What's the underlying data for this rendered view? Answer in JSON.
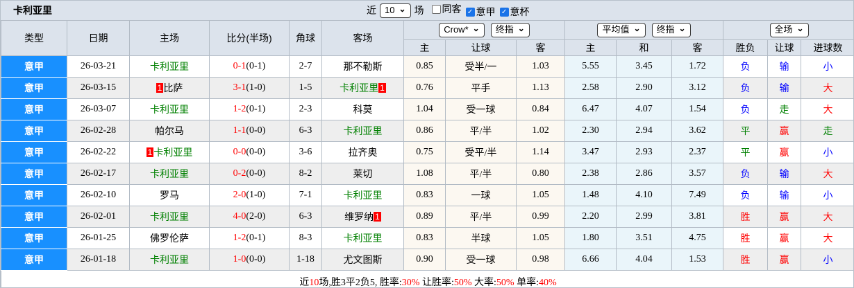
{
  "panel": {
    "title": "卡利亚里",
    "filter": {
      "near_label": "近",
      "matches_count": "10",
      "matches_label": "场",
      "checkboxes": [
        {
          "name": "checkbox-same-venue",
          "label": "同客",
          "checked": false
        },
        {
          "name": "checkbox-serie-a",
          "label": "意甲",
          "checked": true
        },
        {
          "name": "checkbox-coppa-italia",
          "label": "意杯",
          "checked": true
        }
      ]
    }
  },
  "table": {
    "headers": {
      "type": "类型",
      "date": "日期",
      "home": "主场",
      "score": "比分(半场)",
      "corner": "角球",
      "away": "客场",
      "sub": {
        "home": "主",
        "handicap": "让球",
        "away": "客",
        "avg_home": "主",
        "avg_draw": "和",
        "avg_away": "客",
        "result": "胜负",
        "handicap_result": "让球",
        "goals": "进球数"
      }
    },
    "selects": {
      "bookmaker": "Crow*",
      "final_a": "终指",
      "average": "平均值",
      "final_b": "终指",
      "scope": "全场"
    },
    "rows": [
      {
        "league": "意甲",
        "date": "26-03-21",
        "home": {
          "name": "卡利亚里",
          "green": true
        },
        "ft": "0-1",
        "ht": "(0-1)",
        "corner": "2-7",
        "away": {
          "name": "那不勒斯",
          "green": false
        },
        "o1": "0.85",
        "hd": "受半/一",
        "o2": "1.03",
        "a1": "5.55",
        "a2": "3.45",
        "a3": "1.72",
        "res": [
          "负",
          "blue"
        ],
        "hres": [
          "输",
          "blue"
        ],
        "gres": [
          "小",
          "blue"
        ]
      },
      {
        "league": "意甲",
        "date": "26-03-15",
        "home": {
          "name": "比萨",
          "green": false,
          "card": "1",
          "card_pos": "before"
        },
        "ft": "3-1",
        "ht": "(1-0)",
        "corner": "1-5",
        "away": {
          "name": "卡利亚里",
          "green": true,
          "card": "1",
          "card_pos": "after"
        },
        "o1": "0.76",
        "hd": "平手",
        "o2": "1.13",
        "a1": "2.58",
        "a2": "2.90",
        "a3": "3.12",
        "res": [
          "负",
          "blue"
        ],
        "hres": [
          "输",
          "blue"
        ],
        "gres": [
          "大",
          "red"
        ]
      },
      {
        "league": "意甲",
        "date": "26-03-07",
        "home": {
          "name": "卡利亚里",
          "green": true
        },
        "ft": "1-2",
        "ht": "(0-1)",
        "corner": "2-3",
        "away": {
          "name": "科莫",
          "green": false
        },
        "o1": "1.04",
        "hd": "受一球",
        "o2": "0.84",
        "a1": "6.47",
        "a2": "4.07",
        "a3": "1.54",
        "res": [
          "负",
          "blue"
        ],
        "hres": [
          "走",
          "green"
        ],
        "gres": [
          "大",
          "red"
        ]
      },
      {
        "league": "意甲",
        "date": "26-02-28",
        "home": {
          "name": "帕尔马",
          "green": false
        },
        "ft": "1-1",
        "ht": "(0-0)",
        "corner": "6-3",
        "away": {
          "name": "卡利亚里",
          "green": true
        },
        "o1": "0.86",
        "hd": "平/半",
        "o2": "1.02",
        "a1": "2.30",
        "a2": "2.94",
        "a3": "3.62",
        "res": [
          "平",
          "green"
        ],
        "hres": [
          "赢",
          "red"
        ],
        "gres": [
          "走",
          "green"
        ]
      },
      {
        "league": "意甲",
        "date": "26-02-22",
        "home": {
          "name": "卡利亚里",
          "green": true,
          "card": "1",
          "card_pos": "before"
        },
        "ft": "0-0",
        "ht": "(0-0)",
        "corner": "3-6",
        "away": {
          "name": "拉齐奥",
          "green": false
        },
        "o1": "0.75",
        "hd": "受平/半",
        "o2": "1.14",
        "a1": "3.47",
        "a2": "2.93",
        "a3": "2.37",
        "res": [
          "平",
          "green"
        ],
        "hres": [
          "赢",
          "red"
        ],
        "gres": [
          "小",
          "blue"
        ]
      },
      {
        "league": "意甲",
        "date": "26-02-17",
        "home": {
          "name": "卡利亚里",
          "green": true
        },
        "ft": "0-2",
        "ht": "(0-0)",
        "corner": "8-2",
        "away": {
          "name": "莱切",
          "green": false
        },
        "o1": "1.08",
        "hd": "平/半",
        "o2": "0.80",
        "a1": "2.38",
        "a2": "2.86",
        "a3": "3.57",
        "res": [
          "负",
          "blue"
        ],
        "hres": [
          "输",
          "blue"
        ],
        "gres": [
          "大",
          "red"
        ]
      },
      {
        "league": "意甲",
        "date": "26-02-10",
        "home": {
          "name": "罗马",
          "green": false
        },
        "ft": "2-0",
        "ht": "(1-0)",
        "corner": "7-1",
        "away": {
          "name": "卡利亚里",
          "green": true
        },
        "o1": "0.83",
        "hd": "一球",
        "o2": "1.05",
        "a1": "1.48",
        "a2": "4.10",
        "a3": "7.49",
        "res": [
          "负",
          "blue"
        ],
        "hres": [
          "输",
          "blue"
        ],
        "gres": [
          "小",
          "blue"
        ]
      },
      {
        "league": "意甲",
        "date": "26-02-01",
        "home": {
          "name": "卡利亚里",
          "green": true
        },
        "ft": "4-0",
        "ht": "(2-0)",
        "corner": "6-3",
        "away": {
          "name": "维罗纳",
          "green": false,
          "card": "1",
          "card_pos": "after"
        },
        "o1": "0.89",
        "hd": "平/半",
        "o2": "0.99",
        "a1": "2.20",
        "a2": "2.99",
        "a3": "3.81",
        "res": [
          "胜",
          "red"
        ],
        "hres": [
          "赢",
          "red"
        ],
        "gres": [
          "大",
          "red"
        ]
      },
      {
        "league": "意甲",
        "date": "26-01-25",
        "home": {
          "name": "佛罗伦萨",
          "green": false
        },
        "ft": "1-2",
        "ht": "(0-1)",
        "corner": "8-3",
        "away": {
          "name": "卡利亚里",
          "green": true
        },
        "o1": "0.83",
        "hd": "半球",
        "o2": "1.05",
        "a1": "1.80",
        "a2": "3.51",
        "a3": "4.75",
        "res": [
          "胜",
          "red"
        ],
        "hres": [
          "赢",
          "red"
        ],
        "gres": [
          "大",
          "red"
        ]
      },
      {
        "league": "意甲",
        "date": "26-01-18",
        "home": {
          "name": "卡利亚里",
          "green": true
        },
        "ft": "1-0",
        "ht": "(0-0)",
        "corner": "1-18",
        "away": {
          "name": "尤文图斯",
          "green": false
        },
        "o1": "0.90",
        "hd": "受一球",
        "o2": "0.98",
        "a1": "6.66",
        "a2": "4.04",
        "a3": "1.53",
        "res": [
          "胜",
          "red"
        ],
        "hres": [
          "赢",
          "red"
        ],
        "gres": [
          "小",
          "blue"
        ]
      }
    ],
    "footer_parts": [
      {
        "t": "近",
        "c": "k"
      },
      {
        "t": "10",
        "c": "r"
      },
      {
        "t": "场,胜3平2负5, 胜率:",
        "c": "k"
      },
      {
        "t": "30%",
        "c": "r"
      },
      {
        "t": " 让胜率:",
        "c": "k"
      },
      {
        "t": "50%",
        "c": "r"
      },
      {
        "t": " 大率:",
        "c": "k"
      },
      {
        "t": "50%",
        "c": "r"
      },
      {
        "t": " 单率:",
        "c": "k"
      },
      {
        "t": "40%",
        "c": "r"
      }
    ]
  }
}
